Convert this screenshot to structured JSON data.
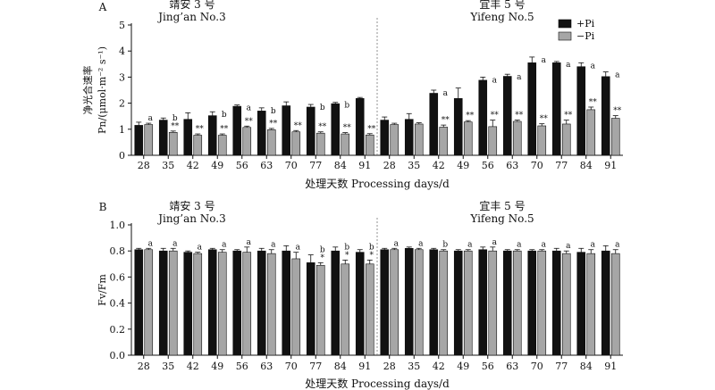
{
  "chart_data": [
    {
      "panel": "A",
      "type": "bar",
      "ylabel": "净光合速率 Pn/(μmol·m⁻² s⁻¹)",
      "ylabel_cn": "净光合速率",
      "ylabel_en": "Pn/(μmol·m⁻² s⁻¹)",
      "xlabel": "处理天数 Processing days/d",
      "ylim": [
        0,
        5
      ],
      "yticks": [
        "0",
        "1",
        "2",
        "3",
        "4",
        "5"
      ],
      "legend_placement": "top-right",
      "groups": [
        {
          "name_cn": "靖安 3 号",
          "name_en": "Jing’an No.3",
          "categories": [
            "28",
            "35",
            "42",
            "49",
            "56",
            "63",
            "70",
            "77",
            "84",
            "91"
          ],
          "series": [
            {
              "name": "+Pi",
              "values": [
                1.15,
                1.35,
                1.38,
                1.52,
                1.88,
                1.7,
                1.9,
                1.85,
                1.98,
                2.18
              ],
              "errors": [
                0.12,
                0.08,
                0.25,
                0.15,
                0.05,
                0.12,
                0.15,
                0.1,
                0.05,
                0.04
              ]
            },
            {
              "name": "−Pi",
              "values": [
                1.18,
                0.88,
                0.77,
                0.77,
                1.07,
                0.98,
                0.9,
                0.85,
                0.82,
                0.78
              ],
              "errors": [
                0.05,
                0.05,
                0.05,
                0.05,
                0.05,
                0.05,
                0.05,
                0.05,
                0.05,
                0.05
              ]
            }
          ],
          "annotations": [
            "a",
            "b\n**",
            "**",
            "b\n**",
            "a\n**",
            "b\n**",
            "**",
            "b\n**",
            "b\n**",
            "**"
          ]
        },
        {
          "name_cn": "宜丰 5 号",
          "name_en": "Yifeng No.5",
          "categories": [
            "28",
            "35",
            "42",
            "49",
            "56",
            "63",
            "70",
            "77",
            "84",
            "91"
          ],
          "series": [
            {
              "name": "+Pi",
              "values": [
                1.35,
                1.38,
                2.38,
                2.18,
                2.88,
                3.03,
                3.55,
                3.55,
                3.4,
                3.02
              ],
              "errors": [
                0.12,
                0.22,
                0.12,
                0.4,
                0.12,
                0.08,
                0.22,
                0.05,
                0.15,
                0.18
              ]
            },
            {
              "name": "−Pi",
              "values": [
                1.18,
                1.2,
                1.08,
                1.28,
                1.1,
                1.3,
                1.13,
                1.2,
                1.75,
                1.42
              ],
              "errors": [
                0.05,
                0.05,
                0.08,
                0.05,
                0.25,
                0.05,
                0.08,
                0.15,
                0.1,
                0.1
              ]
            }
          ],
          "annotations": [
            "",
            "",
            "a\n**",
            "**",
            "a\n**",
            "a\n**",
            "a\n**",
            "a\n**",
            "a\n**",
            "a\n**"
          ]
        }
      ]
    },
    {
      "panel": "B",
      "type": "bar",
      "ylabel": "Fv/Fm",
      "xlabel": "处理天数 Processing days/d",
      "ylim": [
        0,
        1.0
      ],
      "yticks": [
        "0.0",
        "0.2",
        "0.4",
        "0.6",
        "0.8",
        "1.0"
      ],
      "groups": [
        {
          "name_cn": "靖安 3 号",
          "name_en": "Jing’an No.3",
          "categories": [
            "28",
            "35",
            "42",
            "49",
            "56",
            "63",
            "70",
            "77",
            "84",
            "91"
          ],
          "series": [
            {
              "name": "+Pi",
              "values": [
                0.81,
                0.8,
                0.79,
                0.81,
                0.8,
                0.8,
                0.8,
                0.71,
                0.8,
                0.79
              ],
              "errors": [
                0.01,
                0.02,
                0.01,
                0.01,
                0.01,
                0.02,
                0.04,
                0.06,
                0.03,
                0.02
              ]
            },
            {
              "name": "−Pi",
              "values": [
                0.81,
                0.8,
                0.78,
                0.79,
                0.79,
                0.78,
                0.74,
                0.69,
                0.7,
                0.7
              ],
              "errors": [
                0.01,
                0.02,
                0.01,
                0.02,
                0.04,
                0.03,
                0.05,
                0.02,
                0.03,
                0.03
              ]
            }
          ],
          "annotations": [
            "a",
            "a",
            "a",
            "a",
            "a",
            "a",
            "a",
            "b\n*",
            "b\n*",
            "b\n*"
          ]
        },
        {
          "name_cn": "宜丰 5 号",
          "name_en": "Yifeng No.5",
          "categories": [
            "28",
            "35",
            "42",
            "49",
            "56",
            "63",
            "70",
            "77",
            "84",
            "91"
          ],
          "series": [
            {
              "name": "+Pi",
              "values": [
                0.81,
                0.82,
                0.81,
                0.8,
                0.81,
                0.8,
                0.8,
                0.8,
                0.79,
                0.8
              ],
              "errors": [
                0.01,
                0.01,
                0.01,
                0.01,
                0.02,
                0.01,
                0.01,
                0.02,
                0.03,
                0.04
              ]
            },
            {
              "name": "−Pi",
              "values": [
                0.81,
                0.81,
                0.8,
                0.8,
                0.8,
                0.8,
                0.8,
                0.78,
                0.78,
                0.78
              ],
              "errors": [
                0.01,
                0.01,
                0.01,
                0.01,
                0.03,
                0.01,
                0.01,
                0.02,
                0.03,
                0.03
              ]
            }
          ],
          "annotations": [
            "a",
            "a",
            "b",
            "a",
            "a",
            "a",
            "a",
            "a",
            "a",
            "a"
          ]
        }
      ]
    }
  ],
  "colors": {
    "plus_pi": "#111111",
    "minus_pi": "#a6a6a6",
    "axis": "#111111"
  }
}
